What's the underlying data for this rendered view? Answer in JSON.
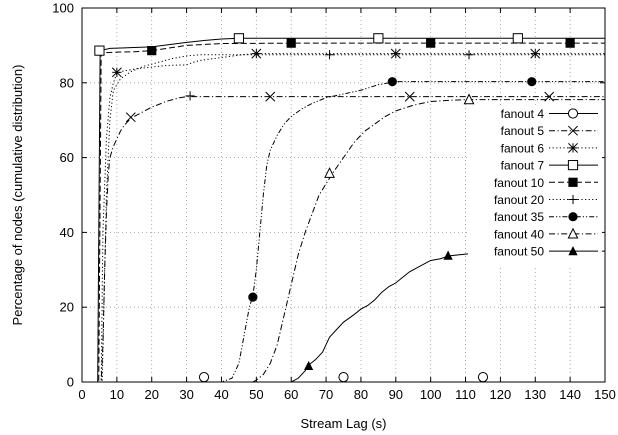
{
  "chart_data": {
    "type": "line",
    "title": "",
    "xlabel": "Stream Lag (s)",
    "ylabel": "Percentage of nodes (cumulative distribution)",
    "xlim": [
      0,
      150
    ],
    "ylim": [
      0,
      100
    ],
    "xticks": [
      "0",
      "10",
      "20",
      "30",
      "40",
      "50",
      "60",
      "70",
      "80",
      "90",
      "100",
      "110",
      "120",
      "130",
      "140",
      "150"
    ],
    "yticks": [
      "0",
      "20",
      "40",
      "60",
      "80",
      "100"
    ],
    "grid": true,
    "legend_position": "right",
    "series": [
      {
        "name": "fanout 4",
        "line_style": "solid",
        "marker": "open-circle",
        "points": [
          [
            0,
            0
          ],
          [
            150,
            0
          ]
        ],
        "markers_at": [
          [
            35,
            1.3
          ],
          [
            75,
            1.3
          ],
          [
            115,
            1.3
          ]
        ]
      },
      {
        "name": "fanout 5",
        "line_style": "dashdot",
        "marker": "x",
        "points": [
          [
            0,
            0
          ],
          [
            5.5,
            0
          ],
          [
            6,
            10
          ],
          [
            6.5,
            30
          ],
          [
            7,
            45
          ],
          [
            7.5,
            55
          ],
          [
            8,
            60
          ],
          [
            9,
            63
          ],
          [
            10,
            65
          ],
          [
            11,
            67
          ],
          [
            12,
            68.5
          ],
          [
            13,
            69.5
          ],
          [
            14,
            70.5
          ],
          [
            16,
            71.5
          ],
          [
            18,
            72.5
          ],
          [
            20,
            73.5
          ],
          [
            22,
            74.2
          ],
          [
            24,
            75
          ],
          [
            26,
            75.5
          ],
          [
            28,
            76
          ],
          [
            30,
            76.3
          ],
          [
            40,
            76.3
          ],
          [
            150,
            76.3
          ]
        ],
        "markers_at": [
          [
            14,
            70.8
          ],
          [
            54,
            76.3
          ],
          [
            94,
            76.3
          ],
          [
            134,
            76.3
          ]
        ]
      },
      {
        "name": "fanout 6",
        "line_style": "dotted",
        "marker": "asterisk",
        "points": [
          [
            0,
            0
          ],
          [
            5.5,
            0
          ],
          [
            6,
            40
          ],
          [
            7,
            65
          ],
          [
            8,
            76
          ],
          [
            9,
            80
          ],
          [
            10,
            82.5
          ],
          [
            12,
            83.2
          ],
          [
            14,
            83.5
          ],
          [
            16,
            83.8
          ],
          [
            18,
            84
          ],
          [
            20,
            84.2
          ],
          [
            22,
            84.4
          ],
          [
            24,
            84.6
          ],
          [
            26,
            84.7
          ],
          [
            30,
            84.8
          ],
          [
            32,
            85.5
          ],
          [
            34,
            86
          ],
          [
            38,
            86.5
          ],
          [
            42,
            87
          ],
          [
            46,
            87.5
          ],
          [
            50,
            87.8
          ],
          [
            150,
            87.8
          ]
        ],
        "markers_at": [
          [
            10,
            82.8
          ],
          [
            50,
            87.8
          ],
          [
            90,
            87.8
          ],
          [
            130,
            87.8
          ]
        ]
      },
      {
        "name": "fanout 7",
        "line_style": "solid",
        "marker": "open-square",
        "points": [
          [
            0,
            0
          ],
          [
            4.5,
            0
          ],
          [
            5.2,
            88.6
          ],
          [
            8,
            89.2
          ],
          [
            20,
            89.6
          ],
          [
            25,
            90.2
          ],
          [
            30,
            90.8
          ],
          [
            35,
            91.3
          ],
          [
            40,
            91.7
          ],
          [
            45,
            91.9
          ],
          [
            150,
            91.9
          ]
        ],
        "markers_at": [
          [
            5,
            88.6
          ],
          [
            45,
            91.9
          ],
          [
            85,
            91.9
          ],
          [
            125,
            91.9
          ]
        ]
      },
      {
        "name": "fanout 10",
        "line_style": "dash",
        "marker": "filled-square",
        "points": [
          [
            0,
            0
          ],
          [
            4.8,
            0
          ],
          [
            5.5,
            88
          ],
          [
            10,
            88.2
          ],
          [
            15,
            88.3
          ],
          [
            20,
            88.6
          ],
          [
            30,
            90
          ],
          [
            40,
            90.5
          ],
          [
            60,
            90.6
          ],
          [
            150,
            90.6
          ]
        ],
        "markers_at": [
          [
            20,
            88.6
          ],
          [
            60,
            90.6
          ],
          [
            100,
            90.6
          ],
          [
            140,
            90.6
          ]
        ]
      },
      {
        "name": "fanout 20",
        "line_style": "dotted",
        "marker": "plus",
        "points": [
          [
            0,
            0
          ],
          [
            5.8,
            0
          ],
          [
            7,
            50
          ],
          [
            8,
            70
          ],
          [
            9,
            78
          ],
          [
            11,
            81
          ],
          [
            14,
            83
          ],
          [
            18,
            84.5
          ],
          [
            22,
            85.5
          ],
          [
            26,
            86.5
          ],
          [
            30,
            87.2
          ],
          [
            34,
            87.5
          ],
          [
            40,
            87.5
          ],
          [
            150,
            87.5
          ]
        ],
        "markers_at": [
          [
            31,
            76.5
          ],
          [
            71,
            87.5
          ],
          [
            111,
            87.5
          ]
        ]
      },
      {
        "name": "fanout 35",
        "line_style": "dashdotdot",
        "marker": "filled-circle",
        "points": [
          [
            0,
            0
          ],
          [
            40,
            0
          ],
          [
            43,
            1
          ],
          [
            45,
            5
          ],
          [
            46,
            10
          ],
          [
            47,
            15
          ],
          [
            48,
            20
          ],
          [
            49,
            23
          ],
          [
            50,
            30
          ],
          [
            51,
            40
          ],
          [
            52,
            50
          ],
          [
            53,
            58
          ],
          [
            54,
            62
          ],
          [
            56,
            66
          ],
          [
            58,
            69
          ],
          [
            60,
            71
          ],
          [
            63,
            73
          ],
          [
            66,
            74.5
          ],
          [
            70,
            76
          ],
          [
            75,
            77
          ],
          [
            80,
            78
          ],
          [
            85,
            79.5
          ],
          [
            90,
            80.3
          ],
          [
            150,
            80.3
          ]
        ],
        "markers_at": [
          [
            49,
            22.7
          ],
          [
            89,
            80.3
          ],
          [
            129,
            80.3
          ]
        ]
      },
      {
        "name": "fanout 40",
        "line_style": "dashdot",
        "marker": "open-triangle",
        "points": [
          [
            0,
            0
          ],
          [
            49,
            0
          ],
          [
            50,
            0.5
          ],
          [
            52,
            2
          ],
          [
            54,
            5
          ],
          [
            56,
            10
          ],
          [
            58,
            18
          ],
          [
            60,
            26
          ],
          [
            62,
            34
          ],
          [
            64,
            40
          ],
          [
            66,
            45
          ],
          [
            68,
            50
          ],
          [
            70,
            53
          ],
          [
            72,
            56
          ],
          [
            75,
            60
          ],
          [
            78,
            64
          ],
          [
            81,
            67
          ],
          [
            84,
            69
          ],
          [
            87,
            71
          ],
          [
            90,
            72.5
          ],
          [
            95,
            74
          ],
          [
            100,
            75
          ],
          [
            105,
            75.3
          ],
          [
            110,
            75.5
          ],
          [
            150,
            75.5
          ]
        ],
        "markers_at": [
          [
            71,
            55.8
          ],
          [
            111,
            75.5
          ]
        ]
      },
      {
        "name": "fanout 50",
        "line_style": "solid",
        "marker": "filled-triangle",
        "points": [
          [
            0,
            0
          ],
          [
            60,
            0
          ],
          [
            62,
            1
          ],
          [
            64,
            3
          ],
          [
            65,
            4.5
          ],
          [
            67,
            6
          ],
          [
            69,
            8
          ],
          [
            70,
            10
          ],
          [
            71,
            12
          ],
          [
            73,
            14
          ],
          [
            75,
            16
          ],
          [
            78,
            18
          ],
          [
            80,
            19.5
          ],
          [
            82,
            20.5
          ],
          [
            84,
            22
          ],
          [
            86,
            24
          ],
          [
            88,
            25.5
          ],
          [
            90,
            26.5
          ],
          [
            92,
            28
          ],
          [
            94,
            29.5
          ],
          [
            96,
            30.5
          ],
          [
            98,
            31.5
          ],
          [
            100,
            32.5
          ],
          [
            103,
            33
          ],
          [
            105,
            33.7
          ],
          [
            110,
            34.2
          ],
          [
            115,
            34.6
          ],
          [
            120,
            34.8
          ],
          [
            125,
            35
          ],
          [
            150,
            35
          ]
        ],
        "markers_at": [
          [
            65,
            4.3
          ],
          [
            105,
            33.8
          ],
          [
            145,
            35
          ]
        ]
      }
    ]
  }
}
